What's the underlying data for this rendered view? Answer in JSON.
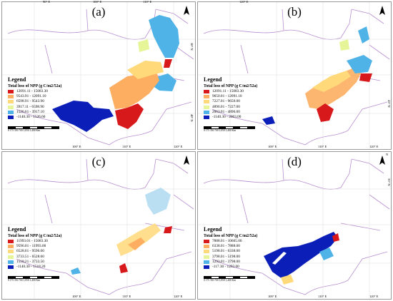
{
  "figure": {
    "north_label": "N",
    "longitude_ticks_top": [
      "90° E",
      "100° E",
      "110° E",
      "120° E"
    ],
    "longitude_ticks_bottom": [
      "100° E",
      "110° E",
      "120° E"
    ],
    "latitude_ticks": [
      "50° N",
      "45° N",
      "40° N",
      "35° N"
    ],
    "legend_title": "Legend",
    "legend_subtitle": "Total loss of NPP (g C/m2/52a)",
    "scale_label": "0 175 350 700 1,050 1,400 Km"
  },
  "panels": [
    {
      "label": "(a)",
      "legend": [
        {
          "range": "12091.11 - 15083.30",
          "color": "#d7191c"
        },
        {
          "range": "9543.91 - 12091.10",
          "color": "#fdae61"
        },
        {
          "range": "6598.91 - 9543.90",
          "color": "#ffd97a"
        },
        {
          "range": "3917.11 - 6598.90",
          "color": "#e6f598"
        },
        {
          "range": "1526.61 - 3917.10",
          "color": "#4fb3e8"
        },
        {
          "range": "-1140.30 - 1526.60",
          "color": "#0b1fb8"
        }
      ]
    },
    {
      "label": "(b)",
      "legend": [
        {
          "range": "12091.11 - 15083.30",
          "color": "#d7191c"
        },
        {
          "range": "9650.01 - 12091.10",
          "color": "#fdae61"
        },
        {
          "range": "7227.01 - 9650.00",
          "color": "#ffd97a"
        },
        {
          "range": "4896.01 - 7227.00",
          "color": "#e6f598"
        },
        {
          "range": "2063.01 - 4896.00",
          "color": "#4fb3e8"
        },
        {
          "range": "-1140.30 - 2063.00",
          "color": "#0b1fb8"
        }
      ]
    },
    {
      "label": "(c)",
      "legend": [
        {
          "range": "11993.01 - 15083.30",
          "color": "#d7191c"
        },
        {
          "range": "9596.01 - 11993.00",
          "color": "#fdae61"
        },
        {
          "range": "6528.61 - 9596.00",
          "color": "#ffd97a"
        },
        {
          "range": "3733.51 - 6528.60",
          "color": "#e6f598"
        },
        {
          "range": "1518.21 - 3733.50",
          "color": "#4fb3e8"
        },
        {
          "range": "-1140.30 - 1518.20",
          "color": "#0b1fb8"
        }
      ]
    },
    {
      "label": "(d)",
      "legend": [
        {
          "range": "7888.01 - 10665.00",
          "color": "#d7191c"
        },
        {
          "range": "6338.01 - 7888.00",
          "color": "#fdae61"
        },
        {
          "range": "5198.01 - 6338.00",
          "color": "#ffd97a"
        },
        {
          "range": "3798.01 - 5198.00",
          "color": "#e6f598"
        },
        {
          "range": "1293.01 - 3798.00",
          "color": "#4fb3e8"
        },
        {
          "range": "-117.30 - 1293.00",
          "color": "#0b1fb8"
        }
      ]
    }
  ]
}
